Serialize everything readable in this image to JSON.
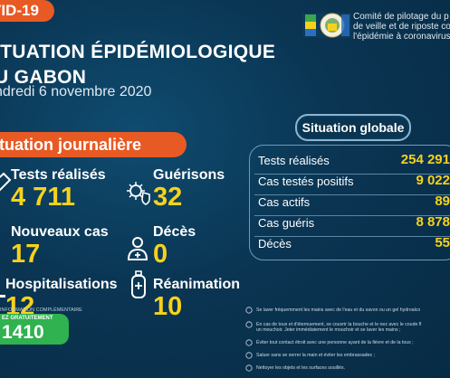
{
  "header": {
    "tag": "VID-19",
    "title_line1": "ITUATION ÉPIDÉMIOLOGIQUE",
    "title_line2": "U GABON",
    "date": "ndredi 6 novembre 2020",
    "committee_line1": "Comité de pilotage du p",
    "committee_line2": "de veille et de riposte co",
    "committee_line3": "l'épidémie à coronavirus"
  },
  "daily": {
    "section_label": "ituation journalière",
    "tests_label": "Tests réalisés",
    "tests_value": "4 711",
    "recoveries_label": "Guérisons",
    "recoveries_value": "32",
    "new_cases_label": "Nouveaux cas",
    "new_cases_value": "17",
    "deaths_label": "Décès",
    "deaths_value": "0",
    "hosp_label": "Hospitalisations",
    "hosp_value": "12",
    "icu_label": "Réanimation",
    "icu_value": "10"
  },
  "global": {
    "section_label": "Situation globale",
    "rows": [
      {
        "label": "Tests réalisés",
        "value": "254 291"
      },
      {
        "label": "Cas testés positifs",
        "value": "9 022"
      },
      {
        "label": "Cas actifs",
        "value": "89"
      },
      {
        "label": "Cas guéris",
        "value": "8 878"
      },
      {
        "label": "Décès",
        "value": "55"
      }
    ]
  },
  "hotline": {
    "info_label": "INFORMATION COMPLÉMENTAIRE",
    "call_label": "EZ GRATUITEMENT",
    "number": "1410"
  },
  "tips": [
    "Se laver fréquemment les mains avec de l'eau et du savon ou un gel hydroalco",
    "En cas de toux et d'éternuement, se couvrir la bouche et le nez avec le coude fl",
    "un mouchoir. Jeter immédiatement le mouchoir et se laver les mains ;",
    "Éviter tout contact étroit avec une personne ayant de la fièvre et de la toux ;",
    "Saluer sans se serrer la main et éviter les embrassades ;",
    "Nettoyer les objets et les surfaces souillés."
  ],
  "colors": {
    "accent_orange": "#e85a24",
    "value_yellow": "#f6d21c",
    "hotline_green": "#2fb24f",
    "background": "#0a3553"
  }
}
